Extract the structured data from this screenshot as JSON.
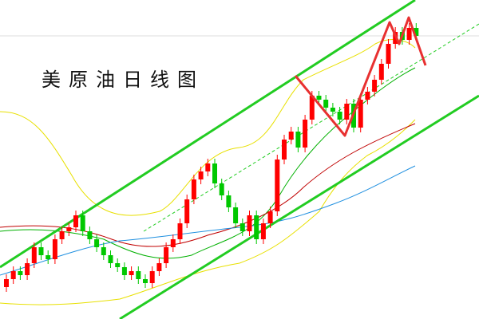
{
  "chart_data": {
    "type": "candlestick",
    "title": "美原油日线图",
    "ylim": [
      0,
      100
    ],
    "up_color": "#ff0000",
    "down_color": "#00c800",
    "open": [
      10,
      12.5,
      15,
      13.75,
      17.5,
      22.5,
      20,
      18.75,
      25,
      27.5,
      28.75,
      32.5,
      27.5,
      25,
      22.5,
      20,
      17.5,
      16.25,
      13.75,
      15,
      12.5,
      11.25,
      15,
      17.5,
      22.5,
      25,
      30,
      37.5,
      43.75,
      46.25,
      48.75,
      42.5,
      38.75,
      35,
      30,
      27.5,
      32.5,
      25,
      30,
      33.75,
      50,
      56.25,
      58.75,
      53.75,
      62.5,
      70,
      68.75,
      66.25,
      65,
      62.5,
      67.5,
      60,
      68.75,
      71.25,
      75,
      80,
      86.25,
      90,
      87.5,
      91.25
    ],
    "high": [
      14,
      16.5,
      16.5,
      19,
      24,
      24,
      21.5,
      26.5,
      29,
      30.25,
      34,
      34,
      29,
      26.5,
      24,
      21.5,
      19,
      17.75,
      16.5,
      16.5,
      14,
      16.5,
      19,
      24,
      26.5,
      31.5,
      39,
      45.25,
      47.75,
      50.25,
      50.25,
      44,
      40.25,
      36.5,
      31.5,
      34,
      34,
      31.5,
      35.25,
      51.5,
      57.75,
      60.25,
      60.25,
      64,
      71.5,
      71.5,
      70.25,
      67.75,
      66.5,
      69,
      69,
      70.25,
      72.75,
      76.5,
      81.5,
      87.75,
      91.5,
      91.5,
      92.75,
      92.75
    ],
    "low": [
      8.5,
      11,
      12.25,
      12.25,
      16,
      18.5,
      17.25,
      17.25,
      23.5,
      26,
      27.25,
      26,
      23.5,
      21,
      18.5,
      16,
      14.75,
      12.25,
      12.25,
      11,
      9.75,
      9.75,
      13.5,
      16,
      21,
      23.5,
      28.5,
      36,
      42.25,
      44.75,
      41,
      37.25,
      33.5,
      28.5,
      26,
      26,
      23.5,
      23.5,
      28.5,
      32.25,
      48.5,
      54.75,
      52.25,
      52.25,
      61,
      67.25,
      64.75,
      63.5,
      61,
      61,
      58.5,
      58.5,
      67.25,
      69.75,
      73.5,
      78.5,
      84.75,
      86,
      86,
      87.25
    ],
    "close": [
      12.5,
      15,
      13.75,
      17.5,
      22.5,
      20,
      18.75,
      25,
      27.5,
      28.75,
      32.5,
      27.5,
      25,
      22.5,
      20,
      17.5,
      16.25,
      13.75,
      15,
      12.5,
      11.25,
      15,
      17.5,
      22.5,
      25,
      30,
      37.5,
      43.75,
      46.25,
      48.75,
      42.5,
      38.75,
      35,
      30,
      27.5,
      32.5,
      25,
      30,
      33.75,
      50,
      56.25,
      58.75,
      53.75,
      62.5,
      70,
      68.75,
      66.25,
      65,
      62.5,
      67.5,
      60,
      68.75,
      71.25,
      75,
      80,
      86.25,
      90,
      87.5,
      91.25,
      88.75
    ]
  }
}
